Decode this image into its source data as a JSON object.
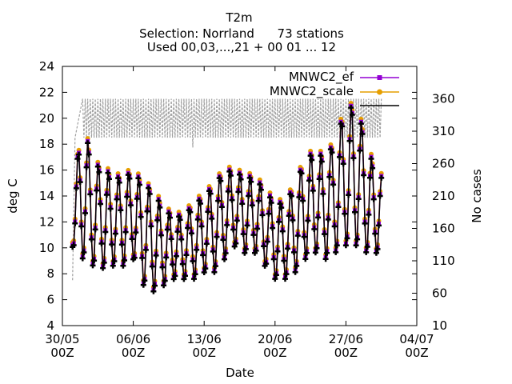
{
  "chart_data": {
    "type": "line",
    "title": "T2m",
    "subtitle_lines": [
      "Selection: Norrland      73 stations",
      "Used 00,03,...,21 + 00 01 ... 12"
    ],
    "xlabel": "Date",
    "ylabel": "deg C",
    "y2label": "No cases",
    "x_ticks": [
      {
        "date": "2018-05-30T00:00",
        "line1": "30/05",
        "line2": "00Z"
      },
      {
        "date": "2018-06-06T00:00",
        "line1": "06/06",
        "line2": "00Z"
      },
      {
        "date": "2018-06-13T00:00",
        "line1": "13/06",
        "line2": "00Z"
      },
      {
        "date": "2018-06-20T00:00",
        "line1": "20/06",
        "line2": "00Z"
      },
      {
        "date": "2018-06-27T00:00",
        "line1": "27/06",
        "line2": "00Z"
      },
      {
        "date": "2018-07-04T00:00",
        "line1": "04/07",
        "line2": "00Z"
      }
    ],
    "x_range": [
      "2018-05-30T00:00",
      "2018-07-04T00:00"
    ],
    "y_ticks": [
      "4",
      "6",
      "8",
      "10",
      "12",
      "14",
      "16",
      "18",
      "20",
      "22",
      "24"
    ],
    "ylim": [
      4,
      24
    ],
    "y2_ticks": [
      "10",
      "60",
      "110",
      "160",
      "210",
      "260",
      "310",
      "360"
    ],
    "y2lim": [
      10,
      410
    ],
    "grid": false,
    "legend_position": "top-right",
    "series": [
      {
        "name": "MNWC2_ef",
        "color": "#9400d3",
        "marker": "square"
      },
      {
        "name": "MNWC2_scale",
        "color": "#e69f00",
        "marker": "circle"
      },
      {
        "name": "",
        "color": "#000000",
        "marker": "plus"
      },
      {
        "name": "",
        "color": "#a0a0a0",
        "marker": "none",
        "axis": "y2",
        "dashed": true
      }
    ],
    "temperature_profile": {
      "start": "2018-05-31T00:00",
      "end": "2018-06-30T12:00",
      "step_hours": 3,
      "daily_means": [
        {
          "date": "2018-05-31",
          "value": 12.0
        },
        {
          "date": "2018-06-01",
          "value": 14.5
        },
        {
          "date": "2018-06-02",
          "value": 12.5
        },
        {
          "date": "2018-06-03",
          "value": 12.3
        },
        {
          "date": "2018-06-04",
          "value": 12.0
        },
        {
          "date": "2018-06-05",
          "value": 12.0
        },
        {
          "date": "2018-06-06",
          "value": 12.5
        },
        {
          "date": "2018-06-07",
          "value": 11.0
        },
        {
          "date": "2018-06-08",
          "value": 10.5
        },
        {
          "date": "2018-06-09",
          "value": 10.0
        },
        {
          "date": "2018-06-10",
          "value": 10.0
        },
        {
          "date": "2018-06-11",
          "value": 10.0
        },
        {
          "date": "2018-06-12",
          "value": 10.5
        },
        {
          "date": "2018-06-13",
          "value": 11.0
        },
        {
          "date": "2018-06-14",
          "value": 11.5
        },
        {
          "date": "2018-06-15",
          "value": 12.5
        },
        {
          "date": "2018-06-16",
          "value": 13.0
        },
        {
          "date": "2018-06-17",
          "value": 12.5
        },
        {
          "date": "2018-06-18",
          "value": 12.5
        },
        {
          "date": "2018-06-19",
          "value": 11.5
        },
        {
          "date": "2018-06-20",
          "value": 10.5
        },
        {
          "date": "2018-06-21",
          "value": 10.5
        },
        {
          "date": "2018-06-22",
          "value": 11.5
        },
        {
          "date": "2018-06-23",
          "value": 13.0
        },
        {
          "date": "2018-06-24",
          "value": 13.5
        },
        {
          "date": "2018-06-25",
          "value": 13.0
        },
        {
          "date": "2018-06-26",
          "value": 14.0
        },
        {
          "date": "2018-06-27",
          "value": 15.5
        },
        {
          "date": "2018-06-28",
          "value": 15.5
        },
        {
          "date": "2018-06-29",
          "value": 14.0
        },
        {
          "date": "2018-06-30",
          "value": 12.5
        }
      ],
      "daily_amplitudes": [
        2.0,
        5.5,
        4.0,
        4.0,
        3.5,
        3.5,
        3.5,
        4.0,
        4.0,
        3.0,
        2.5,
        2.5,
        3.0,
        3.0,
        3.5,
        3.5,
        3.0,
        3.0,
        3.0,
        3.0,
        3.0,
        3.0,
        3.5,
        4.0,
        4.0,
        4.0,
        4.5,
        5.5,
        5.5,
        4.5,
        3.0
      ]
    },
    "cases_profile": {
      "typical": 360,
      "low": 300,
      "range_start": "2018-06-01T00:00",
      "range_end": "2018-06-30T12:00",
      "early_start": "2018-05-31T00:00",
      "early_value": 80,
      "dip": {
        "date": "2018-06-11T21:00",
        "value": 285
      }
    }
  }
}
